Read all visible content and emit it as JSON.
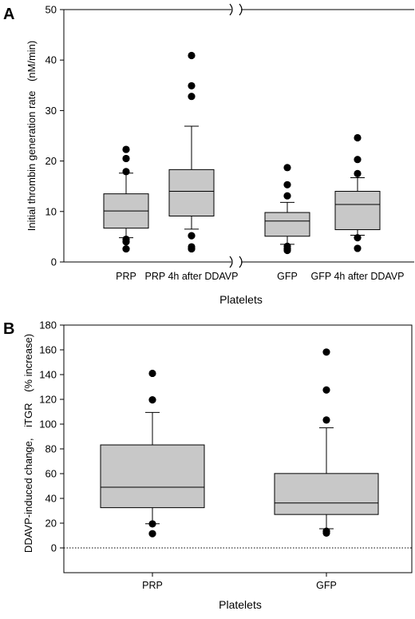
{
  "chart_data": [
    {
      "panel": "A",
      "type": "box",
      "xlabel": "Platelets",
      "ylabel": "Initial thrombin generation rate",
      "ylabel_unit": "(nM/min)",
      "ylim": [
        0,
        50
      ],
      "yticks": [
        "0",
        "10",
        "20",
        "30",
        "40",
        "50"
      ],
      "axis_break": true,
      "grid": false,
      "categories": [
        "PRP",
        "PRP 4h after DDAVP",
        "GFP",
        "GFP 4h after DDAVP"
      ],
      "boxes": [
        {
          "whisker_low": 4.8,
          "q1": 6.7,
          "median": 10.1,
          "q3": 13.5,
          "whisker_high": 17.6,
          "outliers": [
            22.3,
            20.5,
            17.9,
            4.5,
            4.0,
            2.6
          ]
        },
        {
          "whisker_low": 6.5,
          "q1": 9.1,
          "median": 14.0,
          "q3": 18.3,
          "whisker_high": 26.9,
          "outliers": [
            40.9,
            34.9,
            32.8,
            5.2,
            3.0,
            2.6
          ]
        },
        {
          "whisker_low": 3.5,
          "q1": 5.1,
          "median": 8.1,
          "q3": 9.8,
          "whisker_high": 11.8,
          "outliers": [
            18.7,
            15.3,
            13.1,
            3.1,
            2.6,
            2.3
          ]
        },
        {
          "whisker_low": 5.3,
          "q1": 6.4,
          "median": 11.4,
          "q3": 14.0,
          "whisker_high": 16.7,
          "outliers": [
            24.6,
            20.3,
            17.5,
            4.8,
            2.7
          ]
        }
      ]
    },
    {
      "panel": "B",
      "type": "box",
      "xlabel": "Platelets",
      "ylabel": "DDAVP-induced change,",
      "ylabel_mid": "iTGR",
      "ylabel_unit": "(% increase)",
      "ylim": [
        -20,
        180
      ],
      "yticks": [
        "0",
        "20",
        "40",
        "60",
        "80",
        "100",
        "120",
        "140",
        "160",
        "180"
      ],
      "reference_line": 0,
      "grid": false,
      "categories": [
        "PRP",
        "GFP"
      ],
      "boxes": [
        {
          "whisker_low": 19.5,
          "q1": 32.5,
          "median": 49.0,
          "q3": 83.2,
          "whisker_high": 109.4,
          "outliers": [
            141.0,
            119.6,
            19.4,
            11.5
          ]
        },
        {
          "whisker_low": 15.5,
          "q1": 27.0,
          "median": 36.3,
          "q3": 60.1,
          "whisker_high": 97.0,
          "outliers": [
            158.2,
            127.6,
            103.3,
            13.5,
            12.0
          ]
        }
      ]
    }
  ],
  "colors": {
    "box_fill": "#c8c8c8",
    "stroke": "#000000",
    "outlier": "#000000"
  }
}
